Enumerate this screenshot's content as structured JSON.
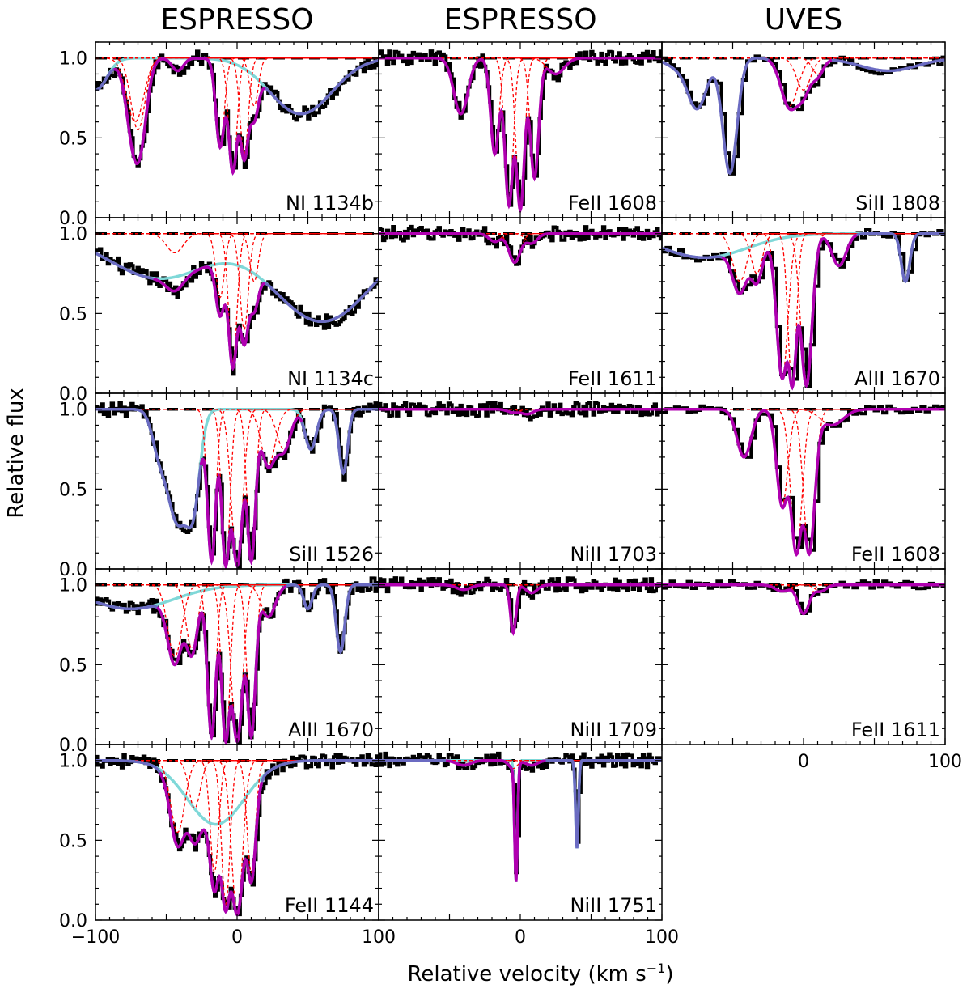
{
  "figure": {
    "column_titles": [
      "ESPRESSO",
      "ESPRESSO",
      "UVES"
    ],
    "ylabel": "Relative flux",
    "xlabel_main": "Relative velocity (km s",
    "xlabel_sup": "−1",
    "xlabel_close": ")"
  },
  "colors": {
    "data": "#000000",
    "total_fit": "#b000b0",
    "components": "#ff0000",
    "blend_fit": "#6b6bc2",
    "contaminant": "#7fd8d8",
    "continuum": "#000000"
  },
  "chart_data": {
    "type": "line",
    "x_range": [
      -100,
      100
    ],
    "y_range": [
      0.0,
      1.1
    ],
    "x_ticks": [
      -100,
      0,
      100
    ],
    "x_tick_labels": [
      "−100",
      "0",
      "100"
    ],
    "y_ticks": [
      0.0,
      0.5,
      1.0
    ],
    "y_tick_labels": [
      "0.0",
      "0.5",
      "1.0"
    ],
    "series_legend": [
      {
        "name": "",
        "role": "data"
      },
      {
        "name": "",
        "role": "total fit"
      },
      {
        "name": "",
        "role": "components"
      }
    ],
    "panels": [
      {
        "col": 0,
        "row": 0,
        "label": "NI 1134b",
        "blend": true,
        "contam": true,
        "comps": [
          [
            -72,
            0.4,
            6
          ],
          [
            -70,
            0.45,
            5
          ],
          [
            -42,
            0.08,
            4
          ],
          [
            -12,
            0.55,
            3
          ],
          [
            -3,
            0.7,
            3
          ],
          [
            5,
            0.6,
            3
          ],
          [
            12,
            0.3,
            3
          ]
        ],
        "extra": [
          [
            45,
            0.35,
            22
          ],
          [
            -100,
            0.2,
            8
          ]
        ]
      },
      {
        "col": 0,
        "row": 1,
        "label": "NI 1134c",
        "blend": true,
        "contam": true,
        "comps": [
          [
            -44,
            0.12,
            6
          ],
          [
            -12,
            0.4,
            3
          ],
          [
            -3,
            0.8,
            3
          ],
          [
            5,
            0.6,
            3
          ],
          [
            12,
            0.3,
            3
          ]
        ],
        "extra": [
          [
            -55,
            0.28,
            35
          ],
          [
            60,
            0.55,
            35
          ]
        ]
      },
      {
        "col": 0,
        "row": 2,
        "label": "SiII 1526",
        "blend": true,
        "contam": true,
        "comps": [
          [
            -18,
            0.95,
            3
          ],
          [
            -8,
            0.98,
            3
          ],
          [
            0,
            0.98,
            4
          ],
          [
            10,
            0.95,
            3
          ],
          [
            22,
            0.35,
            5
          ],
          [
            33,
            0.25,
            5
          ]
        ],
        "extra": [
          [
            -42,
            0.7,
            8
          ],
          [
            -32,
            0.6,
            5
          ],
          [
            52,
            0.25,
            4
          ],
          [
            75,
            0.4,
            3
          ],
          [
            -55,
            0.2,
            5
          ]
        ]
      },
      {
        "col": 0,
        "row": 3,
        "label": "AlII 1670",
        "blend": true,
        "contam": true,
        "comps": [
          [
            -44,
            0.45,
            5
          ],
          [
            -32,
            0.4,
            4
          ],
          [
            -18,
            0.95,
            3
          ],
          [
            -8,
            0.98,
            3
          ],
          [
            0,
            0.98,
            4
          ],
          [
            10,
            0.95,
            3
          ],
          [
            22,
            0.2,
            5
          ]
        ],
        "extra": [
          [
            -75,
            0.15,
            30
          ],
          [
            50,
            0.15,
            3
          ],
          [
            73,
            0.42,
            3
          ]
        ]
      },
      {
        "col": 0,
        "row": 4,
        "label": "FeII 1144",
        "blend": true,
        "contam": true,
        "comps": [
          [
            -42,
            0.45,
            5
          ],
          [
            -30,
            0.3,
            4
          ],
          [
            -16,
            0.7,
            3
          ],
          [
            -8,
            0.9,
            3
          ],
          [
            0,
            0.95,
            4
          ],
          [
            10,
            0.7,
            3
          ]
        ],
        "extra": [
          [
            -15,
            0.4,
            20
          ]
        ]
      },
      {
        "col": 1,
        "row": 0,
        "label": "FeII 1608",
        "blend": false,
        "contam": false,
        "comps": [
          [
            -42,
            0.35,
            5
          ],
          [
            -18,
            0.6,
            3
          ],
          [
            -8,
            0.92,
            3
          ],
          [
            0,
            0.95,
            3
          ],
          [
            10,
            0.75,
            3
          ],
          [
            25,
            0.1,
            6
          ]
        ],
        "extra": []
      },
      {
        "col": 1,
        "row": 1,
        "label": "FeII 1611",
        "blend": false,
        "contam": false,
        "comps": [
          [
            -18,
            0.05,
            4
          ],
          [
            -4,
            0.18,
            4
          ],
          [
            8,
            0.06,
            4
          ]
        ],
        "extra": []
      },
      {
        "col": 1,
        "row": 2,
        "label": "NiII 1703",
        "blend": false,
        "contam": false,
        "comps": [
          [
            -5,
            0.02,
            4
          ],
          [
            5,
            0.03,
            4
          ]
        ],
        "extra": []
      },
      {
        "col": 1,
        "row": 3,
        "label": "NiII 1709",
        "blend": false,
        "contam": false,
        "comps": [
          [
            -40,
            0.03,
            5
          ],
          [
            -5,
            0.3,
            2
          ],
          [
            8,
            0.05,
            4
          ]
        ],
        "extra": []
      },
      {
        "col": 1,
        "row": 4,
        "label": "NiII 1751",
        "blend": true,
        "contam": true,
        "comps": [
          [
            -40,
            0.03,
            5
          ],
          [
            -5,
            0.05,
            3
          ],
          [
            8,
            0.03,
            4
          ]
        ],
        "extra": [
          [
            -3,
            0.75,
            1
          ],
          [
            40,
            0.55,
            1
          ]
        ]
      },
      {
        "col": 2,
        "row": 0,
        "label": "SiII 1808",
        "blend": true,
        "contam": false,
        "comps": [
          [
            -10,
            0.3,
            6
          ],
          [
            0,
            0.2,
            5
          ],
          [
            10,
            0.1,
            4
          ]
        ],
        "extra": [
          [
            -75,
            0.25,
            6
          ],
          [
            -52,
            0.72,
            5
          ],
          [
            -80,
            0.1,
            12
          ],
          [
            60,
            0.08,
            20
          ]
        ]
      },
      {
        "col": 2,
        "row": 1,
        "label": "AlII 1670",
        "blend": true,
        "contam": true,
        "comps": [
          [
            -45,
            0.3,
            5
          ],
          [
            -33,
            0.25,
            4
          ],
          [
            -15,
            0.9,
            4
          ],
          [
            -8,
            0.95,
            3
          ],
          [
            2,
            0.95,
            4
          ],
          [
            25,
            0.2,
            5
          ]
        ],
        "extra": [
          [
            -70,
            0.15,
            30
          ],
          [
            72,
            0.3,
            3
          ]
        ]
      },
      {
        "col": 2,
        "row": 2,
        "label": "FeII 1608",
        "blend": false,
        "contam": false,
        "comps": [
          [
            -42,
            0.3,
            5
          ],
          [
            -15,
            0.6,
            4
          ],
          [
            -5,
            0.9,
            4
          ],
          [
            4,
            0.9,
            4
          ],
          [
            20,
            0.1,
            8
          ]
        ],
        "extra": []
      },
      {
        "col": 2,
        "row": 3,
        "label": "FeII 1611",
        "blend": false,
        "contam": false,
        "comps": [
          [
            -15,
            0.04,
            5
          ],
          [
            0,
            0.18,
            4
          ],
          [
            12,
            0.04,
            4
          ]
        ],
        "extra": []
      }
    ]
  }
}
